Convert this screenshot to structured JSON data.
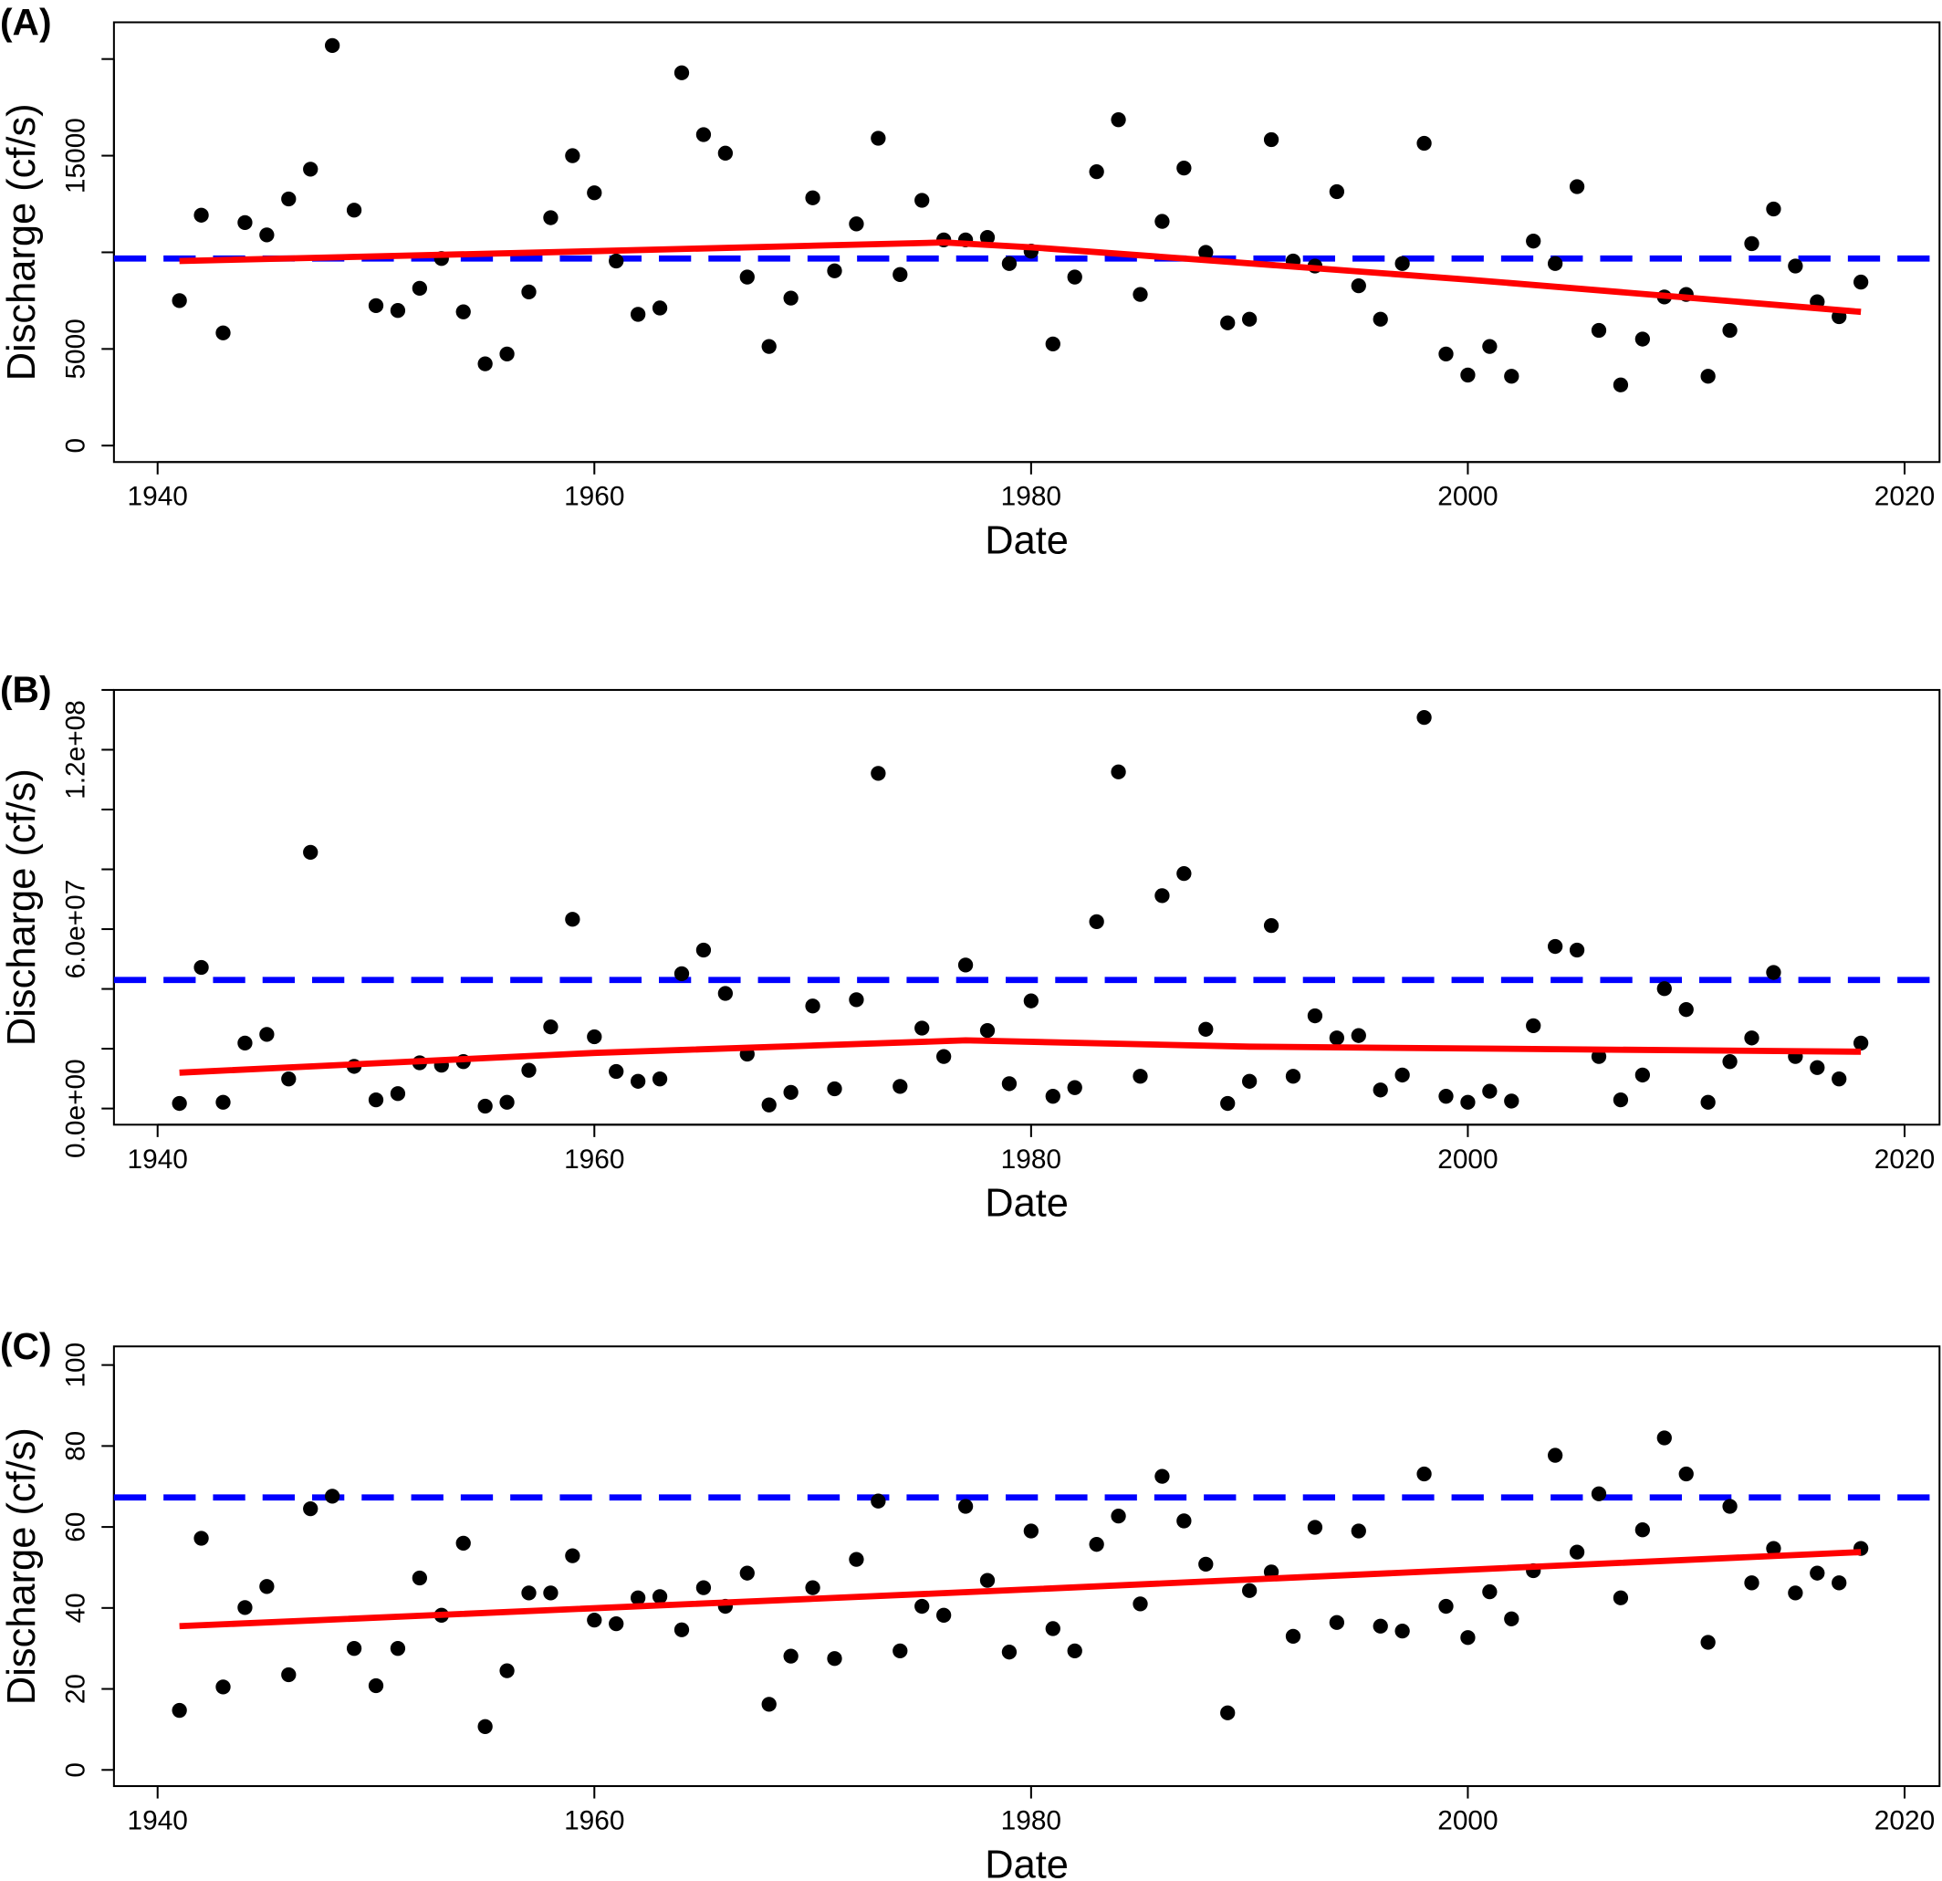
{
  "chart_data": [
    {
      "type": "scatter",
      "title": "(A)",
      "xlabel": "Date",
      "ylabel": "Discharge (cf/s)",
      "xlim": [
        1938,
        2021.6
      ],
      "xticks": [
        1940,
        1960,
        1980,
        2000,
        2020
      ],
      "ylim": [
        -850,
        21900
      ],
      "yticks": [
        0,
        5000,
        {
          "value": 10000,
          "label": null
        },
        15000,
        {
          "value": 20000,
          "label": null
        }
      ],
      "color": "#000000",
      "x": [
        1941,
        1942,
        1943,
        1944,
        1945,
        1946,
        1947,
        1948,
        1949,
        1950,
        1951,
        1952,
        1953,
        1954,
        1955,
        1956,
        1957,
        1958,
        1959,
        1960,
        1961,
        1962,
        1963,
        1964,
        1965,
        1966,
        1967,
        1968,
        1969,
        1970,
        1971,
        1972,
        1973,
        1974,
        1975,
        1976,
        1977,
        1978,
        1979,
        1980,
        1981,
        1982,
        1983,
        1984,
        1985,
        1986,
        1987,
        1988,
        1989,
        1990,
        1991,
        1992,
        1993,
        1994,
        1995,
        1996,
        1997,
        1998,
        1999,
        2000,
        2001,
        2002,
        2003,
        2004,
        2005,
        2006,
        2007,
        2008,
        2009,
        2010,
        2011,
        2012,
        2013,
        2014,
        2015,
        2016,
        2017,
        2018
      ],
      "values": [
        7500,
        11920,
        5830,
        11540,
        10900,
        12760,
        14300,
        20700,
        12180,
        7240,
        6990,
        8140,
        9680,
        6920,
        4230,
        4740,
        7950,
        11790,
        15000,
        13080,
        9550,
        6790,
        7120,
        19290,
        16090,
        15130,
        8720,
        5130,
        7630,
        12820,
        9040,
        11470,
        15900,
        8850,
        12690,
        10640,
        10640,
        10770,
        9420,
        10060,
        5260,
        8720,
        14170,
        16860,
        7820,
        11600,
        14360,
        10000,
        6350,
        6540,
        15830,
        9550,
        9290,
        13140,
        8270,
        6540,
        9420,
        15640,
        4740,
        3650,
        5130,
        3590,
        10580,
        9420,
        13400,
        5960,
        3140,
        5510,
        7690,
        7820,
        3590,
        5960,
        10450,
        12240,
        9290,
        7440,
        6670,
        8460
      ],
      "reference": {
        "value": 9680,
        "color": "#0000ff"
      },
      "trend": {
        "color": "#ff0000",
        "x": [
          1941,
          1960,
          1976,
          1980,
          1987,
          2000,
          2018
        ],
        "values": [
          9550,
          10060,
          10510,
          10260,
          9680,
          8590,
          6920
        ]
      }
    },
    {
      "type": "scatter",
      "title": "(B)",
      "xlabel": "Date",
      "ylabel": "Discharge (cf/s)",
      "xlim": [
        1938,
        2021.6
      ],
      "xticks": [
        1940,
        1960,
        1980,
        2000,
        2020
      ],
      "ylim": [
        -5400000,
        140000000
      ],
      "yticks": [
        {
          "value": 0,
          "label": "0.0e+00"
        },
        {
          "value": 20000000,
          "label": null
        },
        {
          "value": 40000000,
          "label": null
        },
        {
          "value": 60000000,
          "label": "6.0e+07"
        },
        {
          "value": 80000000,
          "label": null
        },
        {
          "value": 100000000,
          "label": null
        },
        {
          "value": 120000000,
          "label": "1.2e+08"
        },
        {
          "value": 140000000,
          "label": null
        }
      ],
      "color": "#000000",
      "x": [
        1941,
        1942,
        1943,
        1944,
        1945,
        1946,
        1947,
        1948,
        1949,
        1950,
        1951,
        1952,
        1953,
        1954,
        1955,
        1956,
        1957,
        1958,
        1959,
        1960,
        1961,
        1962,
        1963,
        1964,
        1965,
        1966,
        1967,
        1968,
        1969,
        1970,
        1971,
        1972,
        1973,
        1974,
        1975,
        1976,
        1977,
        1978,
        1979,
        1980,
        1981,
        1982,
        1983,
        1984,
        1985,
        1986,
        1987,
        1988,
        1989,
        1990,
        1991,
        1992,
        1993,
        1994,
        1995,
        1996,
        1997,
        1998,
        1999,
        2000,
        2001,
        2002,
        2003,
        2004,
        2005,
        2006,
        2007,
        2008,
        2009,
        2010,
        2011,
        2012,
        2013,
        2014,
        2015,
        2016,
        2017,
        2018
      ],
      "values": [
        1700000,
        47200000,
        2100000,
        21900000,
        24800000,
        9900000,
        85700000,
        null,
        14100000,
        2900000,
        5000000,
        15300000,
        14500000,
        15700000,
        800000,
        2100000,
        12800000,
        27300000,
        63300000,
        24000000,
        12400000,
        9100000,
        9900000,
        45100000,
        53000000,
        38500000,
        18200000,
        1200000,
        5400000,
        34300000,
        6600000,
        36400000,
        112100000,
        7400000,
        26900000,
        17400000,
        48000000,
        26100000,
        8300000,
        36000000,
        4100000,
        7000000,
        62500000,
        112600000,
        10800000,
        71200000,
        78600000,
        26500000,
        1700000,
        9100000,
        61200000,
        10800000,
        31000000,
        23600000,
        24400000,
        6200000,
        11200000,
        130800000,
        4100000,
        2100000,
        5800000,
        2500000,
        27700000,
        54200000,
        53000000,
        17400000,
        2900000,
        11200000,
        40100000,
        33100000,
        2100000,
        15700000,
        23600000,
        45500000,
        17400000,
        13700000,
        9900000,
        21900000
      ],
      "reference": {
        "value": 43000000,
        "color": "#0000ff"
      },
      "trend": {
        "color": "#ff0000",
        "x": [
          1941,
          1960,
          1977,
          1990,
          2018
        ],
        "values": [
          12000000,
          18600000,
          22800000,
          20700000,
          19000000
        ]
      }
    },
    {
      "type": "scatter",
      "title": "(C)",
      "xlabel": "Date",
      "ylabel": "Discharge (cf/s)",
      "xlim": [
        1938,
        2021.6
      ],
      "xticks": [
        1940,
        1960,
        1980,
        2000,
        2020
      ],
      "ylim": [
        -4,
        104.6
      ],
      "yticks": [
        0,
        20,
        40,
        60,
        80,
        100
      ],
      "color": "#000000",
      "x": [
        1941,
        1942,
        1943,
        1944,
        1945,
        1946,
        1947,
        1948,
        1949,
        1950,
        1951,
        1952,
        1953,
        1954,
        1955,
        1956,
        1957,
        1958,
        1959,
        1960,
        1961,
        1962,
        1963,
        1964,
        1965,
        1966,
        1967,
        1968,
        1969,
        1970,
        1971,
        1972,
        1973,
        1974,
        1975,
        1976,
        1977,
        1978,
        1979,
        1980,
        1981,
        1982,
        1983,
        1984,
        1985,
        1986,
        1987,
        1988,
        1989,
        1990,
        1991,
        1992,
        1993,
        1994,
        1995,
        1996,
        1997,
        1998,
        1999,
        2000,
        2001,
        2002,
        2003,
        2004,
        2005,
        2006,
        2007,
        2008,
        2009,
        2010,
        2011,
        2012,
        2013,
        2014,
        2015,
        2016,
        2017,
        2018
      ],
      "values": [
        14.7,
        57.2,
        20.5,
        40.1,
        45.3,
        23.5,
        64.5,
        67.6,
        30.0,
        20.8,
        30.0,
        47.4,
        38.2,
        56.0,
        10.7,
        24.5,
        43.7,
        43.7,
        52.9,
        37.0,
        36.1,
        42.5,
        42.8,
        34.6,
        45.0,
        40.4,
        48.6,
        16.2,
        28.1,
        45.0,
        27.5,
        52.0,
        66.4,
        29.4,
        40.4,
        38.2,
        65.1,
        46.8,
        29.1,
        59.0,
        34.9,
        29.4,
        55.7,
        62.7,
        41.0,
        72.5,
        61.5,
        50.8,
        14.1,
        44.3,
        48.9,
        33.0,
        59.9,
        36.4,
        59.0,
        35.5,
        34.3,
        73.1,
        40.4,
        32.7,
        44.0,
        37.3,
        49.2,
        77.7,
        53.8,
        68.2,
        42.5,
        59.3,
        82.0,
        73.1,
        31.5,
        65.1,
        46.2,
        54.7,
        43.7,
        48.6,
        46.2,
        54.7
      ],
      "reference": {
        "value": 67.3,
        "color": "#0000ff"
      },
      "trend": {
        "color": "#ff0000",
        "x": [
          1941,
          1980,
          2018
        ],
        "values": [
          35.5,
          44.6,
          53.8
        ]
      }
    }
  ]
}
